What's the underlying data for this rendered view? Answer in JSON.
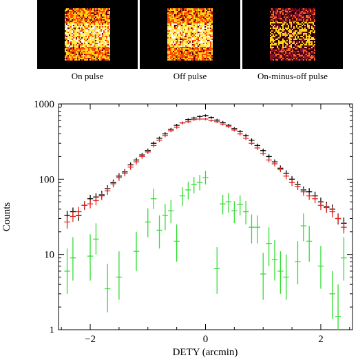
{
  "panels": [
    {
      "label": "On pulse",
      "colors": [
        "#ff4a00",
        "#ffe94a",
        "#ffd51a",
        "#ff7a00",
        "#ffffff"
      ]
    },
    {
      "label": "Off pulse",
      "colors": [
        "#ff4a00",
        "#ffe94a",
        "#ffd51a",
        "#ff7a00",
        "#ffffff"
      ]
    },
    {
      "label": "On-minus-off pulse",
      "colors": [
        "#8a0f2a",
        "#ff6a1a",
        "#ffd51a",
        "#a01838",
        "#ffe06a"
      ]
    }
  ],
  "chart_data": {
    "type": "scatter",
    "xlabel": "DETY (arcmin)",
    "ylabel": "Counts",
    "xlim": [
      -2.55,
      2.55
    ],
    "ylim": [
      1,
      1000
    ],
    "yscale": "log",
    "xticks": [
      -2,
      0,
      2
    ],
    "xtick_labels": [
      "−2",
      "0",
      "2"
    ],
    "yticks": [
      1,
      10,
      100,
      1000
    ],
    "ytick_labels": [
      "1",
      "10",
      "100",
      "1000"
    ],
    "series": [
      {
        "color": "#000000",
        "x": [
          -2.4,
          -2.3,
          -2.2,
          -2.1,
          -2.0,
          -1.9,
          -1.8,
          -1.7,
          -1.6,
          -1.5,
          -1.4,
          -1.3,
          -1.2,
          -1.1,
          -1.0,
          -0.9,
          -0.8,
          -0.7,
          -0.6,
          -0.5,
          -0.4,
          -0.3,
          -0.2,
          -0.1,
          0.0,
          0.1,
          0.2,
          0.3,
          0.4,
          0.5,
          0.6,
          0.7,
          0.8,
          0.9,
          1.0,
          1.1,
          1.2,
          1.3,
          1.4,
          1.5,
          1.6,
          1.7,
          1.8,
          1.9,
          2.0,
          2.1,
          2.2,
          2.3,
          2.4
        ],
        "y": [
          33,
          37,
          33,
          45,
          55,
          58,
          62,
          75,
          90,
          110,
          125,
          155,
          180,
          210,
          240,
          300,
          350,
          400,
          460,
          520,
          560,
          620,
          650,
          680,
          700,
          660,
          610,
          570,
          520,
          470,
          430,
          380,
          330,
          280,
          240,
          200,
          170,
          140,
          120,
          100,
          85,
          72,
          68,
          60,
          50,
          43,
          40,
          30,
          26
        ],
        "err": [
          5,
          5,
          5,
          6,
          7,
          7,
          8,
          8,
          9,
          10,
          11,
          12,
          13,
          14,
          15,
          17,
          18,
          20,
          21,
          22,
          23,
          25,
          25,
          26,
          26,
          25,
          24,
          23,
          22,
          21,
          20,
          19,
          18,
          17,
          15,
          14,
          13,
          12,
          11,
          10,
          9,
          8,
          8,
          8,
          7,
          7,
          6,
          5,
          5
        ]
      },
      {
        "color": "#e8231f",
        "x": [
          -2.4,
          -2.3,
          -2.2,
          -2.1,
          -2.0,
          -1.9,
          -1.8,
          -1.7,
          -1.6,
          -1.5,
          -1.4,
          -1.3,
          -1.2,
          -1.1,
          -1.0,
          -0.9,
          -0.8,
          -0.7,
          -0.6,
          -0.5,
          -0.4,
          -0.3,
          -0.2,
          -0.1,
          0.0,
          0.1,
          0.2,
          0.3,
          0.4,
          0.5,
          0.6,
          0.7,
          0.8,
          0.9,
          1.0,
          1.1,
          1.2,
          1.3,
          1.4,
          1.5,
          1.6,
          1.7,
          1.8,
          1.9,
          2.0,
          2.1,
          2.2,
          2.3,
          2.4
        ],
        "y": [
          27,
          32,
          37,
          45,
          47,
          52,
          60,
          70,
          87,
          105,
          120,
          145,
          170,
          200,
          230,
          280,
          330,
          380,
          440,
          490,
          560,
          580,
          620,
          630,
          630,
          600,
          580,
          540,
          500,
          450,
          400,
          350,
          300,
          260,
          220,
          180,
          160,
          135,
          110,
          90,
          80,
          68,
          60,
          55,
          45,
          42,
          37,
          30,
          23
        ],
        "err": [
          5,
          5,
          6,
          6,
          6,
          7,
          7,
          8,
          9,
          10,
          11,
          12,
          13,
          14,
          15,
          16,
          18,
          19,
          20,
          22,
          23,
          24,
          24,
          25,
          25,
          24,
          24,
          23,
          22,
          21,
          20,
          18,
          17,
          16,
          14,
          13,
          12,
          11,
          10,
          9,
          8,
          8,
          7,
          7,
          6,
          6,
          6,
          5,
          4
        ]
      },
      {
        "color": "#33dd33",
        "x": [
          -2.4,
          -2.3,
          -2.0,
          -1.9,
          -1.7,
          -1.5,
          -1.2,
          -1.0,
          -0.9,
          -0.8,
          -0.7,
          -0.6,
          -0.5,
          -0.4,
          -0.3,
          -0.2,
          -0.1,
          0.0,
          0.2,
          0.3,
          0.4,
          0.5,
          0.6,
          0.7,
          0.8,
          0.9,
          1.0,
          1.1,
          1.2,
          1.3,
          1.4,
          1.6,
          1.7,
          1.8,
          2.0,
          2.2,
          2.3,
          2.4
        ],
        "y": [
          6,
          9,
          9.5,
          16,
          3.5,
          5,
          11,
          27,
          55,
          21,
          33,
          38,
          15,
          60,
          72,
          85,
          91,
          105,
          6.5,
          47,
          50,
          38,
          46,
          37,
          23,
          23,
          5.5,
          14,
          8.5,
          6,
          5,
          8,
          24,
          15,
          7,
          3,
          1.5,
          9
        ],
        "err_low": [
          3.0,
          4.5,
          5,
          6,
          1.8,
          2.5,
          5,
          10,
          15,
          9,
          12,
          12,
          7,
          16,
          18,
          20,
          20,
          20,
          3.5,
          13,
          14,
          12,
          13,
          12,
          9,
          9,
          3,
          7,
          4,
          3,
          2.5,
          4,
          9,
          7,
          3.5,
          1.6,
          0.6,
          4.5
        ],
        "err_high": [
          6,
          8,
          9,
          10,
          4,
          6,
          9,
          14,
          20,
          12,
          14,
          15,
          10,
          18,
          20,
          22,
          23,
          24,
          6,
          15,
          16,
          13,
          15,
          14,
          11,
          10,
          5,
          9,
          7,
          5,
          5,
          7,
          11,
          9,
          6,
          3,
          2.5,
          8
        ]
      }
    ]
  }
}
